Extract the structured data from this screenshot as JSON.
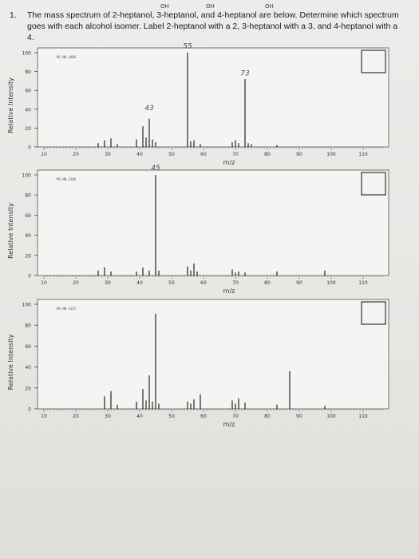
{
  "question": {
    "number": "1.",
    "text": "The mass spectrum of 2-heptanol, 3-heptanol, and 4-heptanol are below. Determine which spectrum goes with each alcohol isomer. Label 2-heptanol with a 2, 3-heptanol with a 3, and 4-heptanol with a 4."
  },
  "annotations": {
    "oh1": "OH",
    "oh2": "OH",
    "oh3": "OH"
  },
  "chart_data": [
    {
      "type": "bar",
      "ylabel": "Relative Intensity",
      "xlabel": "m/z",
      "spectrum_id": "MS-NW-3408",
      "xlim": [
        8,
        118
      ],
      "ylim": [
        0,
        100
      ],
      "xticks": [
        10,
        20,
        30,
        40,
        50,
        60,
        70,
        80,
        90,
        100,
        110
      ],
      "yticks": [
        0,
        20,
        40,
        60,
        80,
        100
      ],
      "answer_box": "",
      "handwritten_labels": [
        {
          "text": "55",
          "x": 55,
          "y": 104
        },
        {
          "text": "73",
          "x": 73,
          "y": 75
        },
        {
          "text": "43",
          "x": 43,
          "y": 38
        }
      ],
      "peaks": [
        {
          "x": 27,
          "y": 4
        },
        {
          "x": 29,
          "y": 7
        },
        {
          "x": 31,
          "y": 9
        },
        {
          "x": 33,
          "y": 3
        },
        {
          "x": 39,
          "y": 8
        },
        {
          "x": 41,
          "y": 22
        },
        {
          "x": 42,
          "y": 10
        },
        {
          "x": 43,
          "y": 30
        },
        {
          "x": 44,
          "y": 8
        },
        {
          "x": 45,
          "y": 5
        },
        {
          "x": 55,
          "y": 100
        },
        {
          "x": 56,
          "y": 6
        },
        {
          "x": 57,
          "y": 7
        },
        {
          "x": 59,
          "y": 3
        },
        {
          "x": 69,
          "y": 5
        },
        {
          "x": 70,
          "y": 7
        },
        {
          "x": 71,
          "y": 4
        },
        {
          "x": 73,
          "y": 72
        },
        {
          "x": 74,
          "y": 4
        },
        {
          "x": 75,
          "y": 3
        },
        {
          "x": 83,
          "y": 2
        }
      ]
    },
    {
      "type": "bar",
      "ylabel": "Relative Intensity",
      "xlabel": "m/z",
      "spectrum_id": "MS-NW-3186",
      "xlim": [
        8,
        118
      ],
      "ylim": [
        0,
        100
      ],
      "xticks": [
        10,
        20,
        30,
        40,
        50,
        60,
        70,
        80,
        90,
        100,
        110
      ],
      "yticks": [
        0,
        20,
        40,
        60,
        80,
        100
      ],
      "answer_box": "",
      "handwritten_labels": [
        {
          "text": "45",
          "x": 45,
          "y": 104
        }
      ],
      "peaks": [
        {
          "x": 27,
          "y": 5
        },
        {
          "x": 29,
          "y": 8
        },
        {
          "x": 31,
          "y": 4
        },
        {
          "x": 39,
          "y": 4
        },
        {
          "x": 41,
          "y": 8
        },
        {
          "x": 43,
          "y": 5
        },
        {
          "x": 45,
          "y": 100
        },
        {
          "x": 46,
          "y": 5
        },
        {
          "x": 55,
          "y": 9
        },
        {
          "x": 56,
          "y": 5
        },
        {
          "x": 57,
          "y": 12
        },
        {
          "x": 58,
          "y": 4
        },
        {
          "x": 69,
          "y": 6
        },
        {
          "x": 70,
          "y": 3
        },
        {
          "x": 71,
          "y": 4
        },
        {
          "x": 73,
          "y": 3
        },
        {
          "x": 83,
          "y": 4
        },
        {
          "x": 98,
          "y": 5
        }
      ]
    },
    {
      "type": "bar",
      "ylabel": "Relative Intensity",
      "xlabel": "m/z",
      "spectrum_id": "MS-NW-3155",
      "xlim": [
        8,
        118
      ],
      "ylim": [
        0,
        100
      ],
      "xticks": [
        10,
        20,
        30,
        40,
        50,
        60,
        70,
        80,
        90,
        100,
        110
      ],
      "yticks": [
        0,
        20,
        40,
        60,
        80,
        100
      ],
      "answer_box": "",
      "handwritten_labels": [],
      "peaks": [
        {
          "x": 29,
          "y": 12
        },
        {
          "x": 31,
          "y": 17
        },
        {
          "x": 33,
          "y": 4
        },
        {
          "x": 39,
          "y": 7
        },
        {
          "x": 41,
          "y": 19
        },
        {
          "x": 42,
          "y": 8
        },
        {
          "x": 43,
          "y": 32
        },
        {
          "x": 44,
          "y": 7
        },
        {
          "x": 45,
          "y": 91
        },
        {
          "x": 46,
          "y": 5
        },
        {
          "x": 55,
          "y": 7
        },
        {
          "x": 56,
          "y": 5
        },
        {
          "x": 57,
          "y": 9
        },
        {
          "x": 59,
          "y": 14
        },
        {
          "x": 69,
          "y": 8
        },
        {
          "x": 70,
          "y": 5
        },
        {
          "x": 71,
          "y": 10
        },
        {
          "x": 73,
          "y": 6
        },
        {
          "x": 83,
          "y": 4
        },
        {
          "x": 87,
          "y": 36
        },
        {
          "x": 98,
          "y": 3
        }
      ]
    }
  ]
}
